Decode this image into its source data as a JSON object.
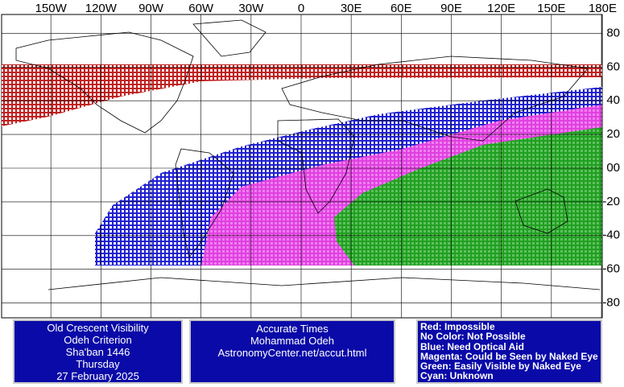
{
  "map": {
    "lon_labels": [
      {
        "value": -150,
        "label": "150W"
      },
      {
        "value": -120,
        "label": "120W"
      },
      {
        "value": -90,
        "label": "90W"
      },
      {
        "value": -60,
        "label": "60W"
      },
      {
        "value": -30,
        "label": "30W"
      },
      0,
      {
        "value": 30,
        "label": "30E"
      },
      {
        "value": 60,
        "label": "60E"
      },
      {
        "value": 90,
        "label": "90E"
      },
      {
        "value": 120,
        "label": "120E"
      },
      {
        "value": 150,
        "label": "150E"
      },
      {
        "value": 180,
        "label": "180E"
      }
    ],
    "lat_labels": [
      80,
      60,
      40,
      20,
      {
        "value": 0,
        "label": "00"
      },
      -20,
      -40,
      -60,
      -80
    ]
  },
  "info_box": [
    "Old Crescent Visibility",
    "Odeh Criterion",
    "Sha'ban 1446",
    "Thursday",
    "27 February 2025"
  ],
  "source_box": [
    "Accurate Times",
    "Mohammad Odeh",
    "AstronomyCenter.net/accut.html"
  ],
  "legend": [
    "Red: Impossible",
    "No Color: Not Possible",
    "Blue: Need Optical Aid",
    "Magenta: Could be Seen by Naked Eye",
    "Green: Easily Visible by Naked Eye",
    "Cyan: Unknown"
  ]
}
